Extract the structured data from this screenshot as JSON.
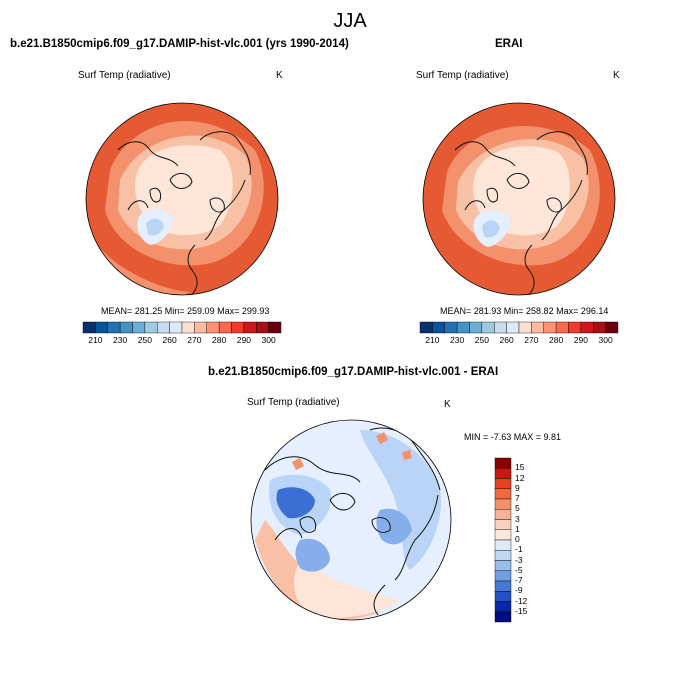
{
  "figure": {
    "title": "JJA"
  },
  "panels": [
    {
      "id": "model",
      "title": "b.e21.B1850cmip6.f09_g17.DAMIP-hist-vlc.001 (yrs 1990-2014)",
      "variable_label": "Surf Temp (radiative)",
      "units_label": "K",
      "stats_text": "MEAN= 281.25  Min= 259.09  Max= 299.93",
      "colorbar": {
        "tick_labels": [
          "210",
          "230",
          "250",
          "260",
          "270",
          "280",
          "290",
          "300"
        ],
        "colors": [
          "#08306b",
          "#08519c",
          "#2171b5",
          "#4292c6",
          "#6baed6",
          "#9ecae1",
          "#c6dbef",
          "#deebf7",
          "#fee0d2",
          "#fcbba1",
          "#fc9272",
          "#fb6a4a",
          "#ef3b2c",
          "#cb181d",
          "#a50f15",
          "#67000d"
        ]
      }
    },
    {
      "id": "obs",
      "title": "ERAI",
      "variable_label": "Surf Temp (radiative)",
      "units_label": "K",
      "stats_text": "MEAN= 281.93  Min= 258.82  Max= 296.14",
      "colorbar": {
        "tick_labels": [
          "210",
          "230",
          "250",
          "260",
          "270",
          "280",
          "290",
          "300"
        ],
        "colors": [
          "#08306b",
          "#08519c",
          "#2171b5",
          "#4292c6",
          "#6baed6",
          "#9ecae1",
          "#c6dbef",
          "#deebf7",
          "#fee0d2",
          "#fcbba1",
          "#fc9272",
          "#fb6a4a",
          "#ef3b2c",
          "#cb181d",
          "#a50f15",
          "#67000d"
        ]
      }
    },
    {
      "id": "diff",
      "title": "b.e21.B1850cmip6.f09_g17.DAMIP-hist-vlc.001 - ERAI",
      "variable_label": "Surf Temp (radiative)",
      "units_label": "K",
      "stats_text": "MIN =  -7.63 MAX =   9.81",
      "colorbar": {
        "tick_labels": [
          "15",
          "12",
          "9",
          "7",
          "5",
          "3",
          "1",
          "0",
          "-1",
          "-3",
          "-5",
          "-7",
          "-9",
          "-12",
          "-15"
        ],
        "colors": [
          "#8b0000",
          "#c31b0d",
          "#e8401f",
          "#f2683f",
          "#f4906a",
          "#f6b296",
          "#f9d2bf",
          "#fbe7dd",
          "#dceaf8",
          "#c1d8f2",
          "#99bdea",
          "#6f9fe0",
          "#4479d4",
          "#2350c2",
          "#0a27a6",
          "#000d80"
        ]
      }
    }
  ],
  "colors": {
    "warm_dark": "#e55a33",
    "warm_mid": "#f2916c",
    "warm_light": "#f8c1a6",
    "pale": "#fde5d8",
    "cool_pale": "#e5efff",
    "cool_light": "#b9d4f7",
    "cool_mid": "#85aeea",
    "cool_dark": "#3c6fd4",
    "coast": "#111111"
  }
}
